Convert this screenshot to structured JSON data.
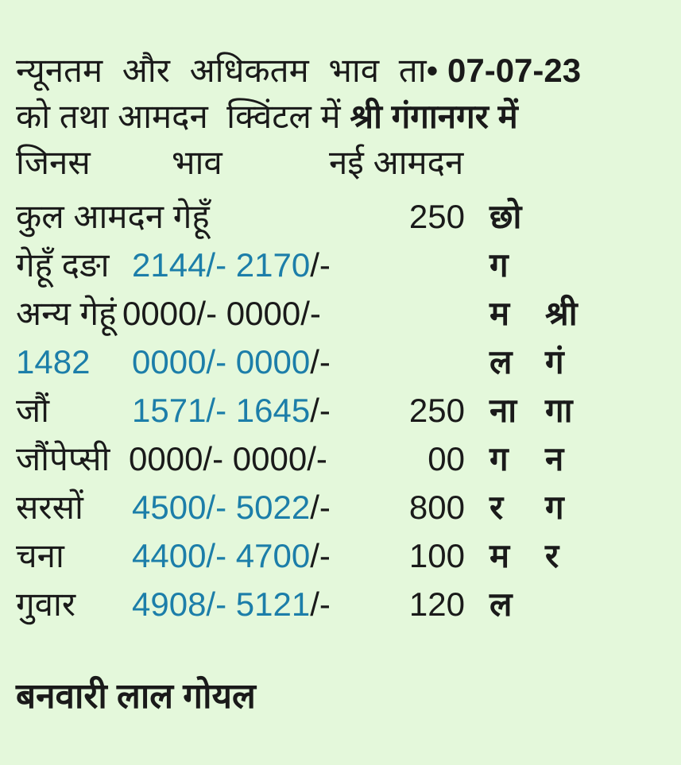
{
  "colors": {
    "background": "#e4f8db",
    "ink": "#1a1a1a",
    "price_blue": "#1c7ea9"
  },
  "header": {
    "line1_text": "न्यूनतम और अधिकतम भाव ता•",
    "line1_date": "07-07-23",
    "line2_text": "को तथा आमदन  क्विंटल में ",
    "line2_bold": "श्री गंगानगर में",
    "columns": {
      "item": "जिनस",
      "price": "भाव",
      "arrival": "नई आमदन"
    }
  },
  "table": {
    "rows": [
      {
        "name": "कुल आमदन गेहूँ",
        "qty": "250",
        "tag1": "छो"
      },
      {
        "name": "गेहूँ दङा",
        "price_blue": "2144/- 2170",
        "suffix": "/-",
        "tag1": "ग"
      },
      {
        "name": "अन्य गेहूं",
        "price_black": "0000/- 0000/-",
        "tag1": "म",
        "tag2": "श्री"
      },
      {
        "name": "1482",
        "price_blue": "0000/- 0000",
        "suffix": "/-",
        "tag1": "ल",
        "tag2": "गं"
      },
      {
        "name": "जौं",
        "price_blue": "1571/- 1645",
        "suffix": "/-",
        "qty": "250",
        "tag1": "ना",
        "tag2": "गा"
      },
      {
        "name": "जौंपेप्सी",
        "price_black": "0000/- 0000/-",
        "qty": "00",
        "tag1": "ग",
        "tag2": "न"
      },
      {
        "name": "सरसों",
        "price_blue": "4500/- 5022",
        "suffix": "/-",
        "qty": "800",
        "tag1": "र",
        "tag2": "ग"
      },
      {
        "name": "चना",
        "price_blue": "4400/- 4700",
        "suffix": "/-",
        "qty": "100",
        "tag1": "म",
        "tag2": "र"
      },
      {
        "name": "गुवार",
        "price_blue": "4908/- 5121",
        "suffix": "/-",
        "qty": "120",
        "tag1": "ल"
      }
    ]
  },
  "footer": {
    "signature": "बनवारी लाल गोयल"
  }
}
